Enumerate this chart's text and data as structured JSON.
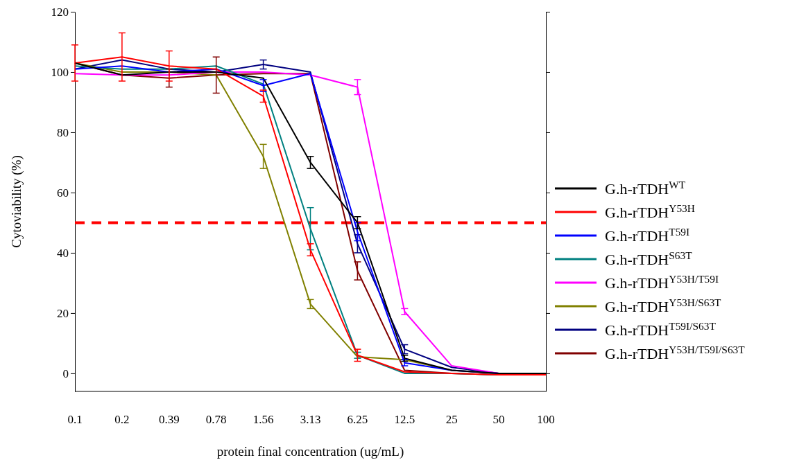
{
  "chart_data": {
    "type": "line",
    "xlabel": "protein final concentration (ug/mL)",
    "ylabel": "Cytoviability (%)",
    "categories": [
      "0.1",
      "0.2",
      "0.39",
      "0.78",
      "1.56",
      "3.13",
      "6.25",
      "12.5",
      "25",
      "50",
      "100"
    ],
    "ylim": [
      -6,
      120
    ],
    "yticks": [
      0,
      20,
      40,
      60,
      80,
      100,
      120
    ],
    "grid": false,
    "legend": "right",
    "marker": "none",
    "line_style": "solid",
    "series": [
      {
        "name": "G.h-rTDH$^{WT}$",
        "color": "#000000",
        "values": [
          103,
          99,
          100,
          100,
          98,
          70,
          50,
          5,
          1,
          0,
          0
        ],
        "errors": [
          null,
          null,
          null,
          null,
          null,
          2,
          2,
          1,
          null,
          null,
          null
        ]
      },
      {
        "name": "G.h-rTDH$^{Y53H}$",
        "color": "#ff0000",
        "values": [
          103,
          105,
          102,
          101,
          92,
          41,
          6,
          0.5,
          0,
          -0.5,
          -0.5
        ],
        "errors": [
          6,
          8,
          5,
          null,
          2,
          2,
          2,
          null,
          null,
          null,
          null
        ]
      },
      {
        "name": "G.h-rTDH$^{T59I}$",
        "color": "#0000ff",
        "values": [
          101,
          102,
          100,
          101,
          95.5,
          99.5,
          47,
          3.5,
          1,
          0,
          0
        ],
        "errors": [
          null,
          null,
          null,
          null,
          2,
          null,
          3,
          1,
          null,
          null,
          null
        ]
      },
      {
        "name": "G.h-rTDH$^{S63T}$",
        "color": "#008080",
        "values": [
          102,
          101,
          101,
          102,
          96,
          48,
          6,
          0,
          0,
          -0.5,
          -0.5
        ],
        "errors": [
          null,
          null,
          null,
          null,
          null,
          7,
          1,
          null,
          null,
          null,
          null
        ]
      },
      {
        "name": "G.h-rTDH$^{Y53H/T59I}$",
        "color": "#ff00ff",
        "values": [
          99.5,
          99,
          99,
          100,
          100,
          99,
          95,
          20.5,
          2.5,
          0,
          0
        ],
        "errors": [
          null,
          null,
          null,
          null,
          null,
          null,
          2.5,
          1,
          null,
          null,
          null
        ]
      },
      {
        "name": "G.h-rTDH$^{Y53H/S63T}$",
        "color": "#808000",
        "values": [
          103,
          100,
          100,
          99,
          72,
          23,
          5.5,
          4.5,
          1,
          0,
          0
        ],
        "errors": [
          null,
          null,
          null,
          null,
          4,
          1.5,
          null,
          null,
          null,
          null,
          null
        ]
      },
      {
        "name": "G.h-rTDH$^{T59I/S63T}$",
        "color": "#000080",
        "values": [
          101,
          104,
          101,
          100,
          102.5,
          100,
          43,
          8,
          2,
          0,
          0
        ],
        "errors": [
          null,
          null,
          null,
          null,
          1.5,
          null,
          3,
          1.5,
          null,
          null,
          null
        ]
      },
      {
        "name": "G.h-rTDH$^{Y53H/T59I/S63T}$",
        "color": "#800000",
        "values": [
          103,
          99,
          98,
          99,
          99.5,
          99.5,
          34,
          1,
          0,
          -0.5,
          -0.5
        ],
        "errors": [
          null,
          null,
          3,
          6,
          null,
          null,
          3,
          null,
          null,
          null,
          null
        ]
      }
    ],
    "ref_lines": [
      {
        "axis": "y",
        "value": 50,
        "color": "#ff0000",
        "line_style": "dashed"
      }
    ]
  }
}
